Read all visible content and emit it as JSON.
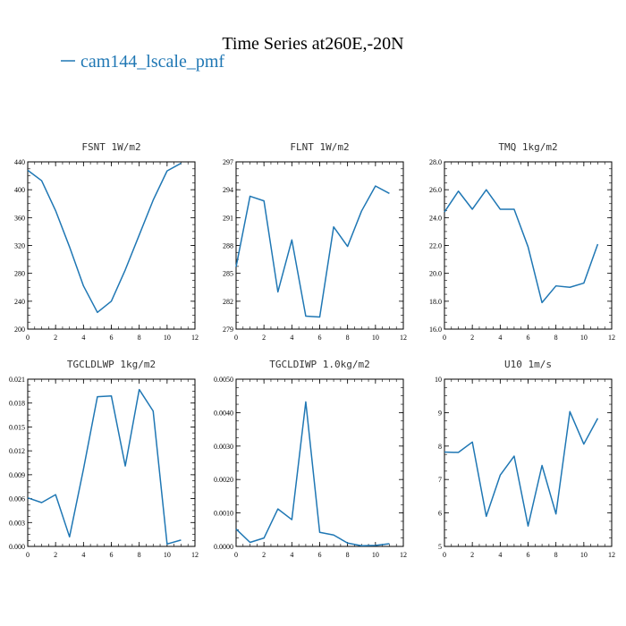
{
  "figure": {
    "title": "Time Series at260E,-20N",
    "legend_label": "cam144_lscale_pmf",
    "series_color": "#1f77b4"
  },
  "chart_data": [
    {
      "type": "line",
      "title": "FSNT   1W/m2",
      "xlabel": "",
      "ylabel": "",
      "xlim": [
        0,
        12
      ],
      "ylim": [
        200,
        440
      ],
      "x_ticks": [
        "0",
        "2",
        "4",
        "6",
        "8",
        "10",
        "12"
      ],
      "y_ticks": [
        "200",
        "240",
        "280",
        "320",
        "360",
        "400",
        "440"
      ],
      "grid": false,
      "series": [
        {
          "x": [
            0,
            1,
            2,
            3,
            4,
            5,
            6,
            7,
            8,
            9,
            10,
            11
          ],
          "values": [
            428,
            413,
            370,
            318,
            262,
            224,
            240,
            285,
            335,
            385,
            427,
            438
          ]
        }
      ]
    },
    {
      "type": "line",
      "title": "FLNT   1W/m2",
      "xlabel": "",
      "ylabel": "",
      "xlim": [
        0,
        12
      ],
      "ylim": [
        279,
        297
      ],
      "x_ticks": [
        "0",
        "2",
        "4",
        "6",
        "8",
        "10",
        "12"
      ],
      "y_ticks": [
        "279",
        "282",
        "285",
        "288",
        "291",
        "294",
        "297"
      ],
      "grid": false,
      "series": [
        {
          "x": [
            0,
            1,
            2,
            3,
            4,
            5,
            6,
            7,
            8,
            9,
            10,
            11
          ],
          "values": [
            285.7,
            293.3,
            292.8,
            283.0,
            288.6,
            280.4,
            280.3,
            290.0,
            287.9,
            291.7,
            294.4,
            293.6
          ]
        }
      ]
    },
    {
      "type": "line",
      "title": "TMQ   1kg/m2",
      "xlabel": "",
      "ylabel": "",
      "xlim": [
        0,
        12
      ],
      "ylim": [
        16.0,
        28.0
      ],
      "x_ticks": [
        "0",
        "2",
        "4",
        "6",
        "8",
        "10",
        "12"
      ],
      "y_ticks": [
        "16.0",
        "18.0",
        "20.0",
        "22.0",
        "24.0",
        "26.0",
        "28.0"
      ],
      "grid": false,
      "series": [
        {
          "x": [
            0,
            1,
            2,
            3,
            4,
            5,
            6,
            7,
            8,
            9,
            10,
            11
          ],
          "values": [
            24.4,
            25.9,
            24.6,
            26.0,
            24.6,
            24.6,
            21.9,
            17.9,
            19.1,
            19.0,
            19.3,
            22.1
          ]
        }
      ]
    },
    {
      "type": "line",
      "title": "TGCLDLWP   1kg/m2",
      "xlabel": "",
      "ylabel": "",
      "xlim": [
        0,
        12
      ],
      "ylim": [
        0.0,
        0.021
      ],
      "x_ticks": [
        "0",
        "2",
        "4",
        "6",
        "8",
        "10",
        "12"
      ],
      "y_ticks": [
        "0.000",
        "0.003",
        "0.006",
        "0.009",
        "0.012",
        "0.015",
        "0.018",
        "0.021"
      ],
      "grid": false,
      "series": [
        {
          "x": [
            0,
            1,
            2,
            3,
            4,
            5,
            6,
            7,
            8,
            9,
            10,
            11
          ],
          "values": [
            0.0061,
            0.0055,
            0.0065,
            0.0012,
            0.0097,
            0.0188,
            0.0189,
            0.0101,
            0.0197,
            0.017,
            0.0003,
            0.0008
          ]
        }
      ]
    },
    {
      "type": "line",
      "title": "TGCLDIWP   1.0kg/m2",
      "xlabel": "",
      "ylabel": "",
      "xlim": [
        0,
        12
      ],
      "ylim": [
        0.0,
        0.005
      ],
      "x_ticks": [
        "0",
        "2",
        "4",
        "6",
        "8",
        "10",
        "12"
      ],
      "y_ticks": [
        "0.0000",
        "0.0010",
        "0.0020",
        "0.0030",
        "0.0040",
        "0.0050"
      ],
      "grid": false,
      "series": [
        {
          "x": [
            0,
            1,
            2,
            3,
            4,
            5,
            6,
            7,
            8,
            9,
            10,
            11
          ],
          "values": [
            0.00052,
            0.00012,
            0.00025,
            0.00112,
            0.0008,
            0.00432,
            0.00042,
            0.00034,
            0.0001,
            2e-05,
            3e-05,
            8e-05
          ]
        }
      ]
    },
    {
      "type": "line",
      "title": "U10   1m/s",
      "xlabel": "",
      "ylabel": "",
      "xlim": [
        0,
        12
      ],
      "ylim": [
        5,
        10
      ],
      "x_ticks": [
        "0",
        "2",
        "4",
        "6",
        "8",
        "10",
        "12"
      ],
      "y_ticks": [
        "5",
        "6",
        "7",
        "8",
        "9",
        "10"
      ],
      "grid": false,
      "series": [
        {
          "x": [
            0,
            1,
            2,
            3,
            4,
            5,
            6,
            7,
            8,
            9,
            10,
            11
          ],
          "values": [
            7.82,
            7.81,
            8.12,
            5.9,
            7.13,
            7.7,
            5.61,
            7.42,
            5.97,
            9.03,
            8.06,
            8.83
          ]
        }
      ]
    }
  ]
}
